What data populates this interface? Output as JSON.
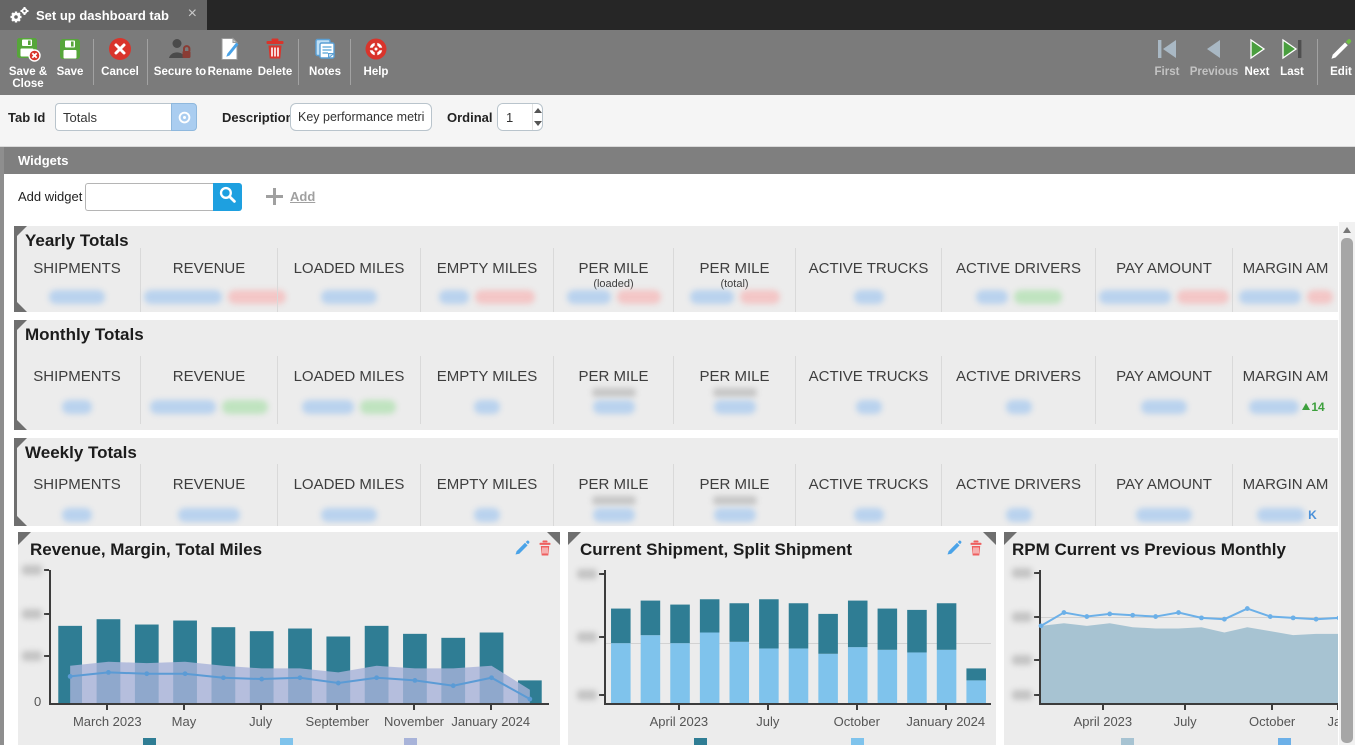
{
  "tab": {
    "title": "Set up dashboard tab",
    "close": "×"
  },
  "toolbar": {
    "save_close_line1": "Save &",
    "save_close_line2": "Close",
    "save": "Save",
    "cancel": "Cancel",
    "secure_to": "Secure to",
    "rename": "Rename",
    "delete": "Delete",
    "notes": "Notes",
    "help": "Help",
    "first": "First",
    "previous": "Previous",
    "next": "Next",
    "last": "Last",
    "edit": "Edit"
  },
  "form": {
    "tab_id_label": "Tab Id",
    "tab_id_value": "Totals",
    "description_label": "Description",
    "description_value": "Key performance metrics",
    "ordinal_label": "Ordinal",
    "ordinal_value": "1"
  },
  "widgets_section": {
    "header": "Widgets",
    "add_widget_label": "Add widget",
    "search_value": "",
    "add_button": "Add"
  },
  "palette": {
    "redacted_blue": "#b9d2ee",
    "redacted_red": "#f3c6c6",
    "redacted_green": "#bfe3bf",
    "smudge_gray": "#c4c4c4",
    "bar_teal": "#2f7d94",
    "bar_light_blue": "#7fc3ec",
    "area_periwinkle": "rgba(168,179,217,0.8)",
    "line_blue": "#5b9bd5",
    "area_steel": "#a7c3d2",
    "line_light_blue": "#6cb0e8",
    "edit_icon_blue": "#4aa3e8",
    "delete_icon_red": "#ee6060",
    "suffix_green": "#3da03d",
    "suffix_blue": "#4a90d9"
  },
  "totals_widgets": [
    {
      "title": "Yearly Totals",
      "columns": [
        {
          "label": "SHIPMENTS",
          "blobs": [
            [
              "blue",
              56
            ]
          ]
        },
        {
          "label": "REVENUE",
          "blobs": [
            [
              "blue",
              78
            ],
            [
              "red",
              58
            ]
          ]
        },
        {
          "label": "LOADED MILES",
          "blobs": [
            [
              "blue",
              56
            ]
          ]
        },
        {
          "label": "EMPTY MILES",
          "blobs": [
            [
              "blue",
              30
            ],
            [
              "red",
              60
            ]
          ]
        },
        {
          "label": "PER MILE",
          "sub": "(loaded)",
          "blobs": [
            [
              "blue",
              44
            ],
            [
              "red",
              44
            ]
          ]
        },
        {
          "label": "PER MILE",
          "sub": "(total)",
          "blobs": [
            [
              "blue",
              44
            ],
            [
              "red",
              40
            ]
          ]
        },
        {
          "label": "ACTIVE TRUCKS",
          "blobs": [
            [
              "blue",
              30
            ]
          ]
        },
        {
          "label": "ACTIVE DRIVERS",
          "blobs": [
            [
              "blue",
              32
            ],
            [
              "green",
              48
            ]
          ]
        },
        {
          "label": "PAY AMOUNT",
          "blobs": [
            [
              "blue",
              72
            ],
            [
              "red",
              52
            ]
          ]
        },
        {
          "label": "MARGIN AM",
          "blobs": [
            [
              "blue",
              62
            ],
            [
              "red",
              26
            ]
          ]
        }
      ]
    },
    {
      "title": "Monthly Totals",
      "columns": [
        {
          "label": "SHIPMENTS",
          "blobs": [
            [
              "blue",
              30
            ]
          ]
        },
        {
          "label": "REVENUE",
          "blobs": [
            [
              "blue",
              66
            ],
            [
              "green",
              46
            ]
          ]
        },
        {
          "label": "LOADED MILES",
          "blobs": [
            [
              "blue",
              52
            ],
            [
              "green",
              36
            ]
          ]
        },
        {
          "label": "EMPTY MILES",
          "blobs": [
            [
              "blue",
              26
            ]
          ]
        },
        {
          "label": "PER MILE",
          "sub_redacted": true,
          "blobs": [
            [
              "blue",
              42
            ]
          ]
        },
        {
          "label": "PER MILE",
          "sub_redacted": true,
          "blobs": [
            [
              "blue",
              42
            ]
          ]
        },
        {
          "label": "ACTIVE TRUCKS",
          "blobs": [
            [
              "blue",
              26
            ]
          ]
        },
        {
          "label": "ACTIVE DRIVERS",
          "blobs": [
            [
              "blue",
              26
            ]
          ]
        },
        {
          "label": "PAY AMOUNT",
          "blobs": [
            [
              "blue",
              46
            ]
          ]
        },
        {
          "label": "MARGIN AM",
          "blobs": [
            [
              "blue",
              50
            ]
          ],
          "suffix": {
            "text": "14",
            "color": "#3da03d",
            "arrow": true
          }
        }
      ]
    },
    {
      "title": "Weekly Totals",
      "columns": [
        {
          "label": "SHIPMENTS",
          "blobs": [
            [
              "blue",
              30
            ]
          ]
        },
        {
          "label": "REVENUE",
          "blobs": [
            [
              "blue",
              62
            ]
          ]
        },
        {
          "label": "LOADED MILES",
          "blobs": [
            [
              "blue",
              56
            ]
          ]
        },
        {
          "label": "EMPTY MILES",
          "blobs": [
            [
              "blue",
              26
            ]
          ]
        },
        {
          "label": "PER MILE",
          "sub_redacted": true,
          "blobs": [
            [
              "blue",
              42
            ]
          ]
        },
        {
          "label": "PER MILE",
          "sub_redacted": true,
          "blobs": [
            [
              "blue",
              42
            ]
          ]
        },
        {
          "label": "ACTIVE TRUCKS",
          "blobs": [
            [
              "blue",
              30
            ]
          ]
        },
        {
          "label": "ACTIVE DRIVERS",
          "blobs": [
            [
              "blue",
              26
            ]
          ]
        },
        {
          "label": "PAY AMOUNT",
          "blobs": [
            [
              "blue",
              56
            ]
          ]
        },
        {
          "label": "MARGIN AM",
          "blobs": [
            [
              "blue",
              48
            ]
          ],
          "suffix": {
            "text": "K",
            "color": "#4a90d9"
          }
        }
      ]
    }
  ],
  "chart_data": [
    {
      "type": "bar-line-area",
      "title": "Revenue, Margin, Total Miles",
      "ylim": [
        0,
        100
      ],
      "y_tick_labels_redacted": true,
      "y_ticks": [
        100,
        67,
        35
      ],
      "y_zero": "0",
      "gridlines": [],
      "x_ticks": [
        {
          "label": "March 2023",
          "pos": 0.115
        },
        {
          "label": "May",
          "pos": 0.269
        },
        {
          "label": "July",
          "pos": 0.423
        },
        {
          "label": "September",
          "pos": 0.577
        },
        {
          "label": "November",
          "pos": 0.731
        },
        {
          "label": "January 2024",
          "pos": 0.885
        }
      ],
      "series": [
        {
          "name": "bars",
          "kind": "bar",
          "color": "#2f7d94",
          "values": [
            58,
            63,
            59,
            62,
            57,
            54,
            56,
            50,
            58,
            52,
            49,
            53,
            17
          ]
        },
        {
          "name": "area",
          "kind": "area",
          "color": "rgba(168,179,217,0.8)",
          "values": [
            28,
            31,
            30,
            31,
            28,
            26,
            26,
            23,
            28,
            26,
            26,
            28,
            10
          ]
        },
        {
          "name": "line",
          "kind": "line",
          "color": "#5b9bd5",
          "values": [
            20,
            23,
            22,
            22,
            19,
            18,
            19,
            15,
            19,
            17,
            13,
            19,
            3
          ]
        }
      ],
      "legend": [
        {
          "color": "#2f7d94",
          "x": 125
        },
        {
          "color": "#7fc3ec",
          "x": 262
        },
        {
          "color": "#a8b3d9",
          "x": 386
        }
      ]
    },
    {
      "type": "stacked-bar",
      "title": "Current Shipment, Split Shipment",
      "ylim": [
        0,
        100
      ],
      "y_tick_labels_redacted": true,
      "y_ticks": [
        97,
        50,
        6
      ],
      "gridlines": [
        45
      ],
      "x_ticks": [
        {
          "label": "April 2023",
          "pos": 0.192
        },
        {
          "label": "July",
          "pos": 0.423
        },
        {
          "label": "October",
          "pos": 0.654
        },
        {
          "label": "January 2024",
          "pos": 0.885
        }
      ],
      "series": [
        {
          "name": "bottom",
          "kind": "stack-bottom",
          "color": "#7fc3ec",
          "values": [
            45,
            51,
            45,
            53,
            46,
            41,
            41,
            37,
            42,
            40,
            38,
            40,
            17
          ]
        },
        {
          "name": "top",
          "kind": "stack-top",
          "color": "#2f7d94",
          "values": [
            26,
            26,
            29,
            25,
            29,
            37,
            34,
            30,
            35,
            31,
            32,
            35,
            9
          ]
        }
      ],
      "legend": [
        {
          "color": "#2f7d94",
          "x": 126
        },
        {
          "color": "#7fc3ec",
          "x": 283
        }
      ]
    },
    {
      "type": "area-line",
      "title": "RPM Current vs Previous Monthly",
      "ylim": [
        0,
        100
      ],
      "y_tick_labels_redacted": true,
      "y_ticks": [
        98,
        65,
        32,
        6
      ],
      "gridlines": [
        65,
        32
      ],
      "x_ticks": [
        {
          "label": "April 2023",
          "pos": 0.211
        },
        {
          "label": "July",
          "pos": 0.487
        },
        {
          "label": "October",
          "pos": 0.779
        },
        {
          "label": "Jan",
          "pos": 1.0
        }
      ],
      "series": [
        {
          "name": "area",
          "kind": "area-full",
          "color": "#a7c3d2",
          "values": [
            58,
            60,
            58,
            60,
            57,
            56,
            56,
            57,
            53,
            57,
            54,
            51,
            52,
            52
          ]
        },
        {
          "name": "line",
          "kind": "line-full",
          "color": "#6cb0e8",
          "values": [
            58,
            68,
            65,
            67,
            66,
            65,
            68,
            64,
            63,
            71,
            65,
            64,
            63,
            64
          ]
        }
      ],
      "legend": [
        {
          "color": "#a7c3d2",
          "x": 117
        },
        {
          "color": "#6cb0e8",
          "x": 274
        }
      ]
    }
  ]
}
